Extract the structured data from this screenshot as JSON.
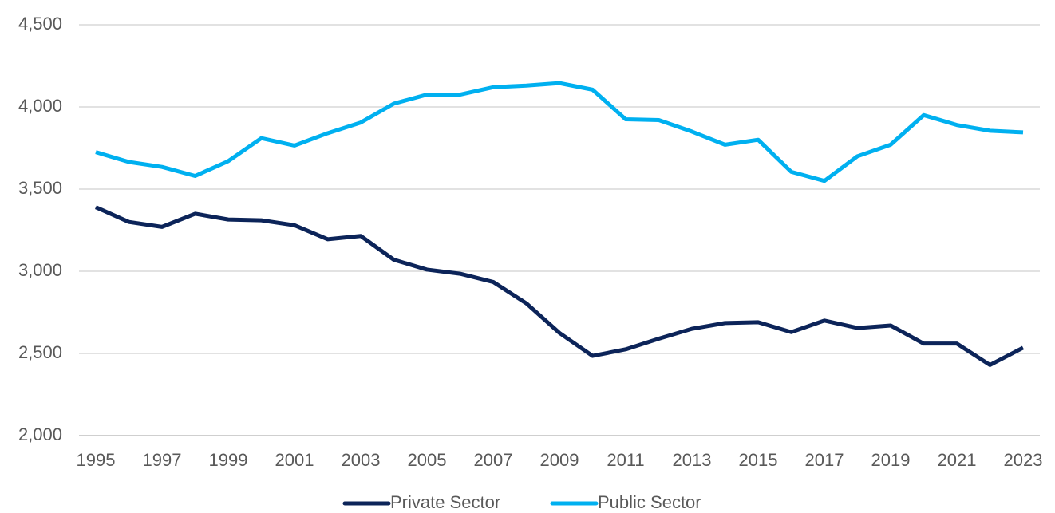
{
  "chart_data": {
    "type": "line",
    "x": [
      1995,
      1996,
      1997,
      1998,
      1999,
      2000,
      2001,
      2002,
      2003,
      2004,
      2005,
      2006,
      2007,
      2008,
      2009,
      2010,
      2011,
      2012,
      2013,
      2014,
      2015,
      2016,
      2017,
      2018,
      2019,
      2020,
      2021,
      2022,
      2023
    ],
    "series": [
      {
        "name": "Private Sector",
        "color": "#0c2459",
        "values": [
          3390,
          3300,
          3270,
          3350,
          3315,
          3310,
          3280,
          3195,
          3215,
          3070,
          3010,
          2985,
          2935,
          2805,
          2625,
          2485,
          2525,
          2590,
          2650,
          2685,
          2690,
          2630,
          2700,
          2655,
          2670,
          2560,
          2560,
          2430,
          2535
        ]
      },
      {
        "name": "Public Sector",
        "color": "#00b0f0",
        "values": [
          3725,
          3665,
          3635,
          3580,
          3670,
          3810,
          3765,
          3840,
          3905,
          4020,
          4075,
          4075,
          4120,
          4130,
          4145,
          4105,
          3925,
          3920,
          3850,
          3770,
          3800,
          3605,
          3550,
          3700,
          3770,
          3950,
          3890,
          3855,
          3845
        ]
      }
    ],
    "xlim": [
      1995,
      2023
    ],
    "xticks": [
      1995,
      1997,
      1999,
      2001,
      2003,
      2005,
      2007,
      2009,
      2011,
      2013,
      2015,
      2017,
      2019,
      2021,
      2023
    ],
    "ylim": [
      2000,
      4500
    ],
    "yticks": [
      {
        "value": 2000,
        "label": "2,000"
      },
      {
        "value": 2500,
        "label": "2,500"
      },
      {
        "value": 3000,
        "label": "3,000"
      },
      {
        "value": 3500,
        "label": "3,500"
      },
      {
        "value": 4000,
        "label": "4,000"
      },
      {
        "value": 4500,
        "label": "4,500"
      }
    ],
    "grid": true,
    "legend": "bottom"
  }
}
